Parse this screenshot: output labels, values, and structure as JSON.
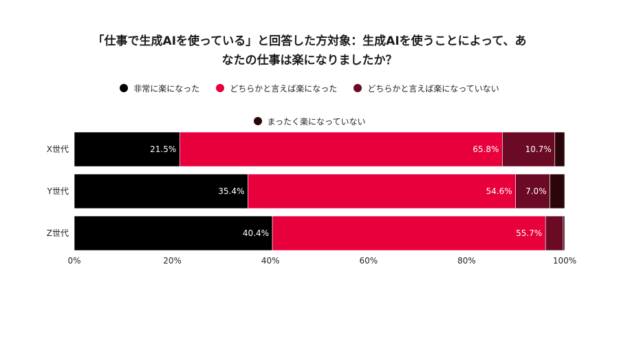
{
  "chart_data": {
    "type": "bar",
    "orientation": "horizontal",
    "stacked": true,
    "title": "「仕事で生成AIを使っている」と回答した方対象：生成AIを使うことによって、あなたの仕事は楽になりましたか？",
    "title_lines": [
      "「仕事で生成AIを使っている」と回答した方対象：生成AIを使うことによって、あ",
      "なたの仕事は楽になりましたか？"
    ],
    "categories": [
      "X世代",
      "Y世代",
      "Z世代"
    ],
    "series": [
      {
        "name": "非常に楽になった",
        "color": "#000000",
        "values": [
          21.5,
          35.4,
          40.4
        ],
        "labels": [
          "21.5%",
          "35.4%",
          "40.4%"
        ]
      },
      {
        "name": "どちらかと言えば楽になった",
        "color": "#e8003d",
        "values": [
          65.8,
          54.6,
          55.7
        ],
        "labels": [
          "65.8%",
          "54.6%",
          "55.7%"
        ]
      },
      {
        "name": "どちらかと言えば楽になっていない",
        "color": "#6a0a24",
        "values": [
          10.7,
          7.0,
          3.6
        ],
        "labels": [
          "10.7%",
          "7.0%",
          ""
        ]
      },
      {
        "name": "まったく楽になっていない",
        "color": "#2a0509",
        "values": [
          2.0,
          3.0,
          0.3
        ],
        "labels": [
          "",
          "",
          ""
        ]
      }
    ],
    "xlim": [
      0,
      100
    ],
    "xticks": [
      "0%",
      "20%",
      "40%",
      "60%",
      "80%",
      "100%"
    ],
    "grid": false,
    "legend_position": "top"
  }
}
